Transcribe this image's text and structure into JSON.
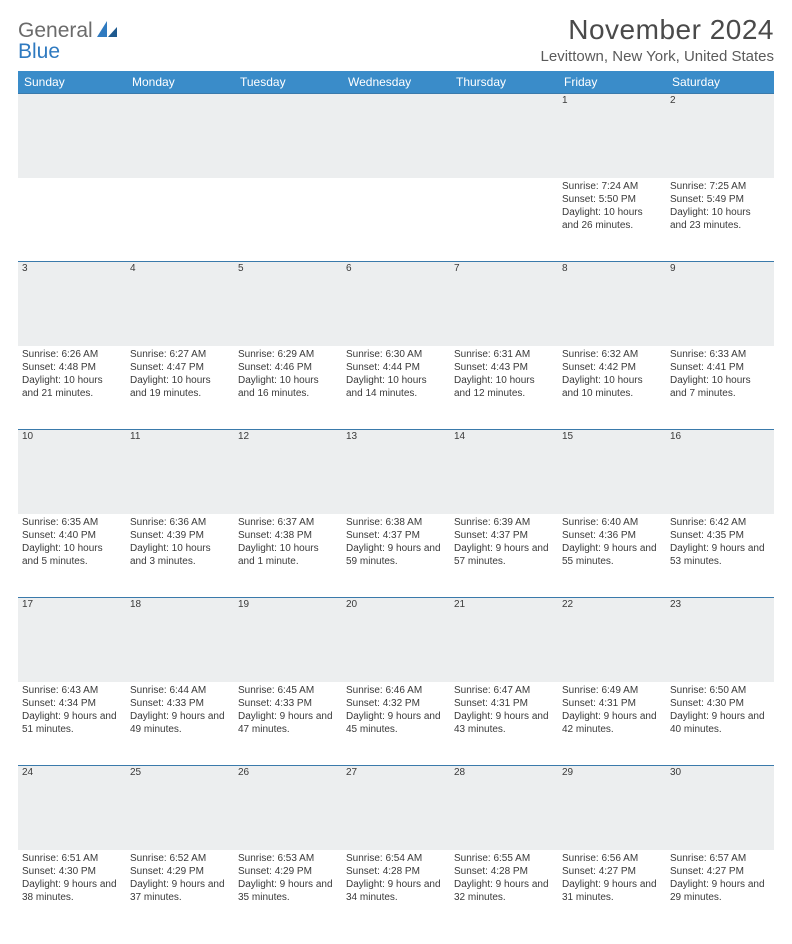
{
  "brand": {
    "part1": "General",
    "part2": "Blue"
  },
  "title": "November 2024",
  "location": "Levittown, New York, United States",
  "headers": [
    "Sunday",
    "Monday",
    "Tuesday",
    "Wednesday",
    "Thursday",
    "Friday",
    "Saturday"
  ],
  "colors": {
    "header_bg": "#3a8cc9",
    "header_text": "#ffffff",
    "daynum_bg": "#eceeef",
    "border": "#3a7aab",
    "brand_gray": "#6b6b6b",
    "brand_blue": "#2f7ac0"
  },
  "weeks": [
    [
      {
        "num": "",
        "sunrise": "",
        "sunset": "",
        "daylight": ""
      },
      {
        "num": "",
        "sunrise": "",
        "sunset": "",
        "daylight": ""
      },
      {
        "num": "",
        "sunrise": "",
        "sunset": "",
        "daylight": ""
      },
      {
        "num": "",
        "sunrise": "",
        "sunset": "",
        "daylight": ""
      },
      {
        "num": "",
        "sunrise": "",
        "sunset": "",
        "daylight": ""
      },
      {
        "num": "1",
        "sunrise": "Sunrise: 7:24 AM",
        "sunset": "Sunset: 5:50 PM",
        "daylight": "Daylight: 10 hours and 26 minutes."
      },
      {
        "num": "2",
        "sunrise": "Sunrise: 7:25 AM",
        "sunset": "Sunset: 5:49 PM",
        "daylight": "Daylight: 10 hours and 23 minutes."
      }
    ],
    [
      {
        "num": "3",
        "sunrise": "Sunrise: 6:26 AM",
        "sunset": "Sunset: 4:48 PM",
        "daylight": "Daylight: 10 hours and 21 minutes."
      },
      {
        "num": "4",
        "sunrise": "Sunrise: 6:27 AM",
        "sunset": "Sunset: 4:47 PM",
        "daylight": "Daylight: 10 hours and 19 minutes."
      },
      {
        "num": "5",
        "sunrise": "Sunrise: 6:29 AM",
        "sunset": "Sunset: 4:46 PM",
        "daylight": "Daylight: 10 hours and 16 minutes."
      },
      {
        "num": "6",
        "sunrise": "Sunrise: 6:30 AM",
        "sunset": "Sunset: 4:44 PM",
        "daylight": "Daylight: 10 hours and 14 minutes."
      },
      {
        "num": "7",
        "sunrise": "Sunrise: 6:31 AM",
        "sunset": "Sunset: 4:43 PM",
        "daylight": "Daylight: 10 hours and 12 minutes."
      },
      {
        "num": "8",
        "sunrise": "Sunrise: 6:32 AM",
        "sunset": "Sunset: 4:42 PM",
        "daylight": "Daylight: 10 hours and 10 minutes."
      },
      {
        "num": "9",
        "sunrise": "Sunrise: 6:33 AM",
        "sunset": "Sunset: 4:41 PM",
        "daylight": "Daylight: 10 hours and 7 minutes."
      }
    ],
    [
      {
        "num": "10",
        "sunrise": "Sunrise: 6:35 AM",
        "sunset": "Sunset: 4:40 PM",
        "daylight": "Daylight: 10 hours and 5 minutes."
      },
      {
        "num": "11",
        "sunrise": "Sunrise: 6:36 AM",
        "sunset": "Sunset: 4:39 PM",
        "daylight": "Daylight: 10 hours and 3 minutes."
      },
      {
        "num": "12",
        "sunrise": "Sunrise: 6:37 AM",
        "sunset": "Sunset: 4:38 PM",
        "daylight": "Daylight: 10 hours and 1 minute."
      },
      {
        "num": "13",
        "sunrise": "Sunrise: 6:38 AM",
        "sunset": "Sunset: 4:37 PM",
        "daylight": "Daylight: 9 hours and 59 minutes."
      },
      {
        "num": "14",
        "sunrise": "Sunrise: 6:39 AM",
        "sunset": "Sunset: 4:37 PM",
        "daylight": "Daylight: 9 hours and 57 minutes."
      },
      {
        "num": "15",
        "sunrise": "Sunrise: 6:40 AM",
        "sunset": "Sunset: 4:36 PM",
        "daylight": "Daylight: 9 hours and 55 minutes."
      },
      {
        "num": "16",
        "sunrise": "Sunrise: 6:42 AM",
        "sunset": "Sunset: 4:35 PM",
        "daylight": "Daylight: 9 hours and 53 minutes."
      }
    ],
    [
      {
        "num": "17",
        "sunrise": "Sunrise: 6:43 AM",
        "sunset": "Sunset: 4:34 PM",
        "daylight": "Daylight: 9 hours and 51 minutes."
      },
      {
        "num": "18",
        "sunrise": "Sunrise: 6:44 AM",
        "sunset": "Sunset: 4:33 PM",
        "daylight": "Daylight: 9 hours and 49 minutes."
      },
      {
        "num": "19",
        "sunrise": "Sunrise: 6:45 AM",
        "sunset": "Sunset: 4:33 PM",
        "daylight": "Daylight: 9 hours and 47 minutes."
      },
      {
        "num": "20",
        "sunrise": "Sunrise: 6:46 AM",
        "sunset": "Sunset: 4:32 PM",
        "daylight": "Daylight: 9 hours and 45 minutes."
      },
      {
        "num": "21",
        "sunrise": "Sunrise: 6:47 AM",
        "sunset": "Sunset: 4:31 PM",
        "daylight": "Daylight: 9 hours and 43 minutes."
      },
      {
        "num": "22",
        "sunrise": "Sunrise: 6:49 AM",
        "sunset": "Sunset: 4:31 PM",
        "daylight": "Daylight: 9 hours and 42 minutes."
      },
      {
        "num": "23",
        "sunrise": "Sunrise: 6:50 AM",
        "sunset": "Sunset: 4:30 PM",
        "daylight": "Daylight: 9 hours and 40 minutes."
      }
    ],
    [
      {
        "num": "24",
        "sunrise": "Sunrise: 6:51 AM",
        "sunset": "Sunset: 4:30 PM",
        "daylight": "Daylight: 9 hours and 38 minutes."
      },
      {
        "num": "25",
        "sunrise": "Sunrise: 6:52 AM",
        "sunset": "Sunset: 4:29 PM",
        "daylight": "Daylight: 9 hours and 37 minutes."
      },
      {
        "num": "26",
        "sunrise": "Sunrise: 6:53 AM",
        "sunset": "Sunset: 4:29 PM",
        "daylight": "Daylight: 9 hours and 35 minutes."
      },
      {
        "num": "27",
        "sunrise": "Sunrise: 6:54 AM",
        "sunset": "Sunset: 4:28 PM",
        "daylight": "Daylight: 9 hours and 34 minutes."
      },
      {
        "num": "28",
        "sunrise": "Sunrise: 6:55 AM",
        "sunset": "Sunset: 4:28 PM",
        "daylight": "Daylight: 9 hours and 32 minutes."
      },
      {
        "num": "29",
        "sunrise": "Sunrise: 6:56 AM",
        "sunset": "Sunset: 4:27 PM",
        "daylight": "Daylight: 9 hours and 31 minutes."
      },
      {
        "num": "30",
        "sunrise": "Sunrise: 6:57 AM",
        "sunset": "Sunset: 4:27 PM",
        "daylight": "Daylight: 9 hours and 29 minutes."
      }
    ]
  ]
}
